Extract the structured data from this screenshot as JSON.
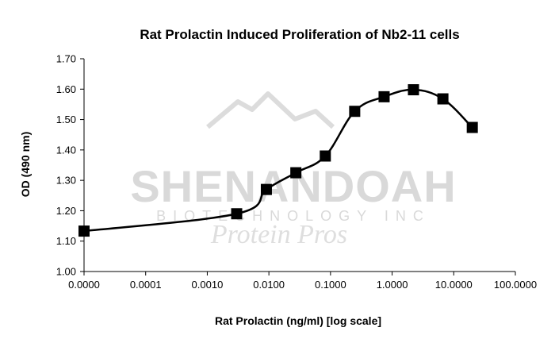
{
  "chart_data": {
    "type": "line",
    "title": "Rat Prolactin Induced Proliferation of Nb2-11 cells",
    "xlabel": "Rat Prolactin (ng/ml) [log scale]",
    "ylabel": "OD (490 nm)",
    "x_scale": "log",
    "x_tick_labels": [
      "0.0000",
      "0.0001",
      "0.0010",
      "0.0100",
      "0.1000",
      "1.0000",
      "10.0000",
      "100.0000"
    ],
    "y_tick_labels": [
      "1.00",
      "1.10",
      "1.20",
      "1.30",
      "1.40",
      "1.50",
      "1.60",
      "1.70"
    ],
    "ylim": [
      1.0,
      1.7
    ],
    "grid": false,
    "legend": "none",
    "marker": "square",
    "series": [
      {
        "x": [
          1e-05,
          0.003,
          0.0091,
          0.0274,
          0.0823,
          0.247,
          0.741,
          2.22,
          6.67,
          20.0
        ],
        "y": [
          1.133,
          1.19,
          1.27,
          1.325,
          1.38,
          1.527,
          1.575,
          1.598,
          1.568,
          1.474
        ]
      }
    ],
    "colors": {
      "line": "#000000",
      "marker": "#000000",
      "axis": "#000000"
    }
  },
  "watermark": {
    "name": "SHENANDOAH",
    "subtitle": "BIOTECHNOLOGY INC",
    "tagline": "Protein Pros"
  }
}
